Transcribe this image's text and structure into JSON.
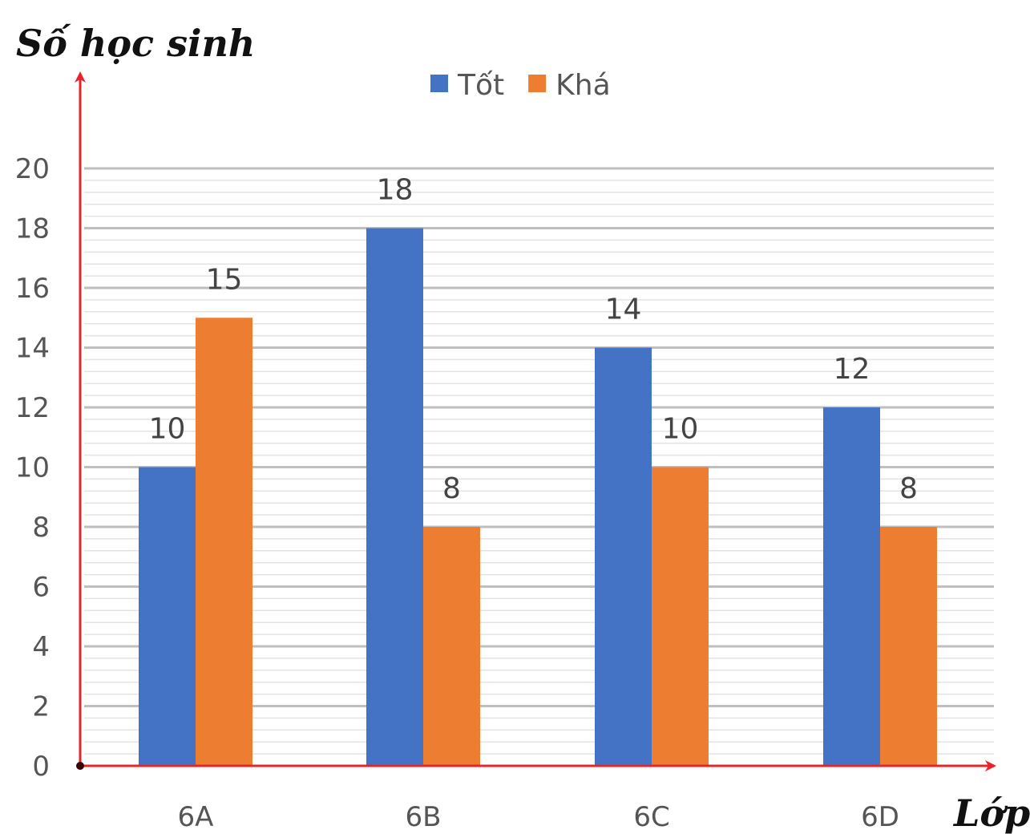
{
  "chart_data": {
    "type": "bar",
    "ylabel": "Số học sinh",
    "xlabel": "Lớp",
    "categories": [
      "6A",
      "6B",
      "6C",
      "6D"
    ],
    "series": [
      {
        "name": "Tốt",
        "values": [
          10,
          18,
          14,
          12
        ],
        "color": "#4472C4"
      },
      {
        "name": "Khá",
        "values": [
          15,
          8,
          10,
          8
        ],
        "color": "#ED7D31"
      }
    ],
    "ylim": [
      0,
      20
    ],
    "yticks": [
      0,
      2,
      4,
      6,
      8,
      10,
      12,
      14,
      16,
      18,
      20
    ],
    "grid": true,
    "legend": "top-center",
    "axis_color": "#e8242a"
  }
}
